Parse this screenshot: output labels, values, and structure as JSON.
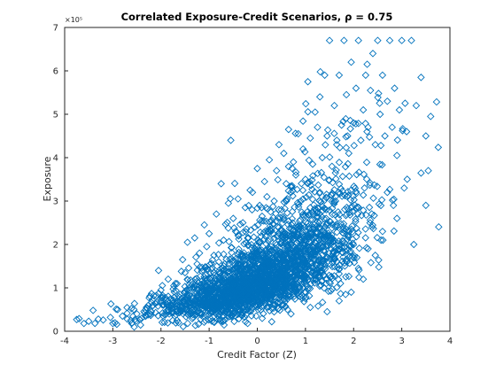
{
  "chart_data": {
    "type": "scatter",
    "title": "Correlated Exposure-Credit Scenarios, ρ = 0.75",
    "xlabel": "Credit Factor (Z)",
    "ylabel": "Exposure",
    "y_exponent_label": "×10⁵",
    "xlim": [
      -4,
      4
    ],
    "ylim": [
      0,
      700000
    ],
    "xticks": [
      -4,
      -3,
      -2,
      -1,
      0,
      1,
      2,
      3,
      4
    ],
    "xtick_labels": [
      "-4",
      "-3",
      "-2",
      "-1",
      "0",
      "1",
      "2",
      "3",
      "4"
    ],
    "yticks": [
      0,
      100000,
      200000,
      300000,
      400000,
      500000,
      600000,
      700000
    ],
    "ytick_labels": [
      "0",
      "1",
      "2",
      "3",
      "4",
      "5",
      "6",
      "7"
    ],
    "grid": false,
    "marker": "diamond-open",
    "color": "#0072BD",
    "series": [
      {
        "points": [
          [
            -3.75,
            27000
          ],
          [
            -3.7,
            29000
          ],
          [
            -3.6,
            18000
          ],
          [
            -3.5,
            23000
          ],
          [
            -3.3,
            28000
          ],
          [
            -3.2,
            26000
          ],
          [
            -3.05,
            32000
          ],
          [
            -3.0,
            18000
          ],
          [
            -2.9,
            50000
          ],
          [
            -2.8,
            35000
          ],
          [
            -2.7,
            28000
          ],
          [
            -2.55,
            64000
          ],
          [
            -2.5,
            40000
          ],
          [
            -2.4,
            30000
          ],
          [
            -2.3,
            55000
          ],
          [
            -2.2,
            45000
          ],
          [
            -2.15,
            82000
          ],
          [
            -2.05,
            140000
          ],
          [
            -2.0,
            95000
          ],
          [
            -1.95,
            60000
          ],
          [
            -1.85,
            120000
          ],
          [
            -1.8,
            75000
          ],
          [
            -1.7,
            110000
          ],
          [
            -1.6,
            85000
          ],
          [
            -1.55,
            165000
          ],
          [
            -1.5,
            135000
          ],
          [
            -1.45,
            205000
          ],
          [
            -1.4,
            100000
          ],
          [
            -1.3,
            215000
          ],
          [
            -1.25,
            155000
          ],
          [
            -1.2,
            180000
          ],
          [
            -1.1,
            245000
          ],
          [
            -1.05,
            195000
          ],
          [
            -1.0,
            225000
          ],
          [
            -0.9,
            175000
          ],
          [
            -0.85,
            270000
          ],
          [
            -0.8,
            160000
          ],
          [
            -0.75,
            340000
          ],
          [
            -0.7,
            210000
          ],
          [
            -0.6,
            295000
          ],
          [
            -0.55,
            440000
          ],
          [
            -0.5,
            260000
          ],
          [
            -0.45,
            230000
          ],
          [
            -0.4,
            305000
          ],
          [
            -0.3,
            250000
          ],
          [
            -0.25,
            285000
          ],
          [
            -0.2,
            215000
          ],
          [
            -0.1,
            320000
          ],
          [
            -0.05,
            240000
          ],
          [
            0.0,
            375000
          ],
          [
            0.05,
            290000
          ],
          [
            0.1,
            265000
          ],
          [
            0.15,
            345000
          ],
          [
            0.2,
            310000
          ],
          [
            0.25,
            395000
          ],
          [
            0.3,
            255000
          ],
          [
            0.35,
            300000
          ],
          [
            0.4,
            370000
          ],
          [
            0.45,
            430000
          ],
          [
            0.5,
            280000
          ],
          [
            0.55,
            410000
          ],
          [
            0.6,
            340000
          ],
          [
            0.65,
            465000
          ],
          [
            0.7,
            320000
          ],
          [
            0.75,
            390000
          ],
          [
            0.8,
            360000
          ],
          [
            0.85,
            455000
          ],
          [
            0.9,
            300000
          ],
          [
            0.95,
            420000
          ],
          [
            1.0,
            350000
          ],
          [
            1.05,
            575000
          ],
          [
            1.1,
            445000
          ],
          [
            1.15,
            385000
          ],
          [
            1.2,
            505000
          ],
          [
            1.25,
            470000
          ],
          [
            1.3,
            540000
          ],
          [
            1.35,
            400000
          ],
          [
            1.4,
            590000
          ],
          [
            1.45,
            450000
          ],
          [
            1.5,
            670000
          ],
          [
            1.55,
            380000
          ],
          [
            1.6,
            520000
          ],
          [
            1.65,
            430000
          ],
          [
            1.7,
            590000
          ],
          [
            1.75,
            475000
          ],
          [
            1.8,
            670000
          ],
          [
            1.85,
            545000
          ],
          [
            1.9,
            410000
          ],
          [
            1.95,
            620000
          ],
          [
            2.0,
            480000
          ],
          [
            2.05,
            560000
          ],
          [
            2.1,
            670000
          ],
          [
            2.15,
            440000
          ],
          [
            2.2,
            510000
          ],
          [
            2.25,
            590000
          ],
          [
            2.3,
            470000
          ],
          [
            2.35,
            555000
          ],
          [
            2.4,
            640000
          ],
          [
            2.45,
            430000
          ],
          [
            2.5,
            670000
          ],
          [
            2.55,
            500000
          ],
          [
            2.6,
            590000
          ],
          [
            2.65,
            450000
          ],
          [
            2.7,
            530000
          ],
          [
            2.75,
            670000
          ],
          [
            2.8,
            470000
          ],
          [
            2.85,
            560000
          ],
          [
            2.9,
            405000
          ],
          [
            2.95,
            510000
          ],
          [
            3.0,
            670000
          ],
          [
            3.1,
            460000
          ],
          [
            3.2,
            670000
          ],
          [
            3.3,
            520000
          ],
          [
            3.4,
            585000
          ],
          [
            3.5,
            450000
          ],
          [
            3.55,
            370000
          ],
          [
            3.6,
            495000
          ],
          [
            -1.35,
            29000
          ],
          [
            -0.2,
            18000
          ],
          [
            0.3,
            22000
          ],
          [
            0.7,
            40000
          ],
          [
            1.1,
            55000
          ],
          [
            1.45,
            45000
          ],
          [
            1.7,
            70000
          ],
          [
            2.1,
            145000
          ],
          [
            2.3,
            190000
          ],
          [
            2.6,
            230000
          ],
          [
            2.9,
            260000
          ],
          [
            3.25,
            200000
          ],
          [
            3.5,
            290000
          ],
          [
            2.2,
            120000
          ],
          [
            2.45,
            175000
          ],
          [
            1.95,
            90000
          ],
          [
            2.7,
            320000
          ],
          [
            3.05,
            330000
          ]
        ]
      }
    ]
  }
}
